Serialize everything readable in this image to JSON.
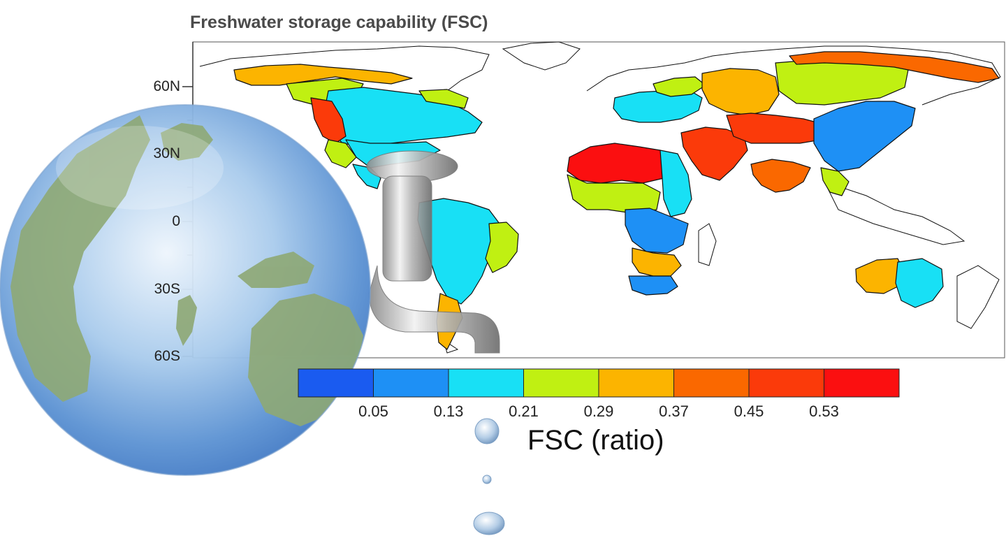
{
  "title": "Freshwater storage capability (FSC)",
  "latitude_labels": [
    "60N",
    "30N",
    "0",
    "30S",
    "60S"
  ],
  "colorbar": {
    "title": "FSC (ratio)",
    "tick_labels": [
      "0.05",
      "0.13",
      "0.21",
      "0.29",
      "0.37",
      "0.45",
      "0.53"
    ],
    "colors": [
      "#1a5bf0",
      "#1e90f5",
      "#18e0f5",
      "#c0f012",
      "#fcb400",
      "#fa6800",
      "#fb3a0a",
      "#fb0f10"
    ]
  },
  "regions": [
    {
      "name": "north-america-arctic-basins",
      "class": 4
    },
    {
      "name": "alaska-basin",
      "class": 3
    },
    {
      "name": "canada-central-basins",
      "class": 2
    },
    {
      "name": "canada-east-basin",
      "class": 3
    },
    {
      "name": "pacific-northwest-basin",
      "class": 6
    },
    {
      "name": "mississippi-basin",
      "class": 2
    },
    {
      "name": "us-southwest-basin",
      "class": 3
    },
    {
      "name": "mexico-basin",
      "class": 2
    },
    {
      "name": "amazon-basin",
      "class": 2
    },
    {
      "name": "brazil-east-basins",
      "class": 3
    },
    {
      "name": "south-america-andes-basin",
      "class": 4
    },
    {
      "name": "sahara-sahel-basins",
      "class": 7
    },
    {
      "name": "nile-basin",
      "class": 2
    },
    {
      "name": "west-africa-basin",
      "class": 3
    },
    {
      "name": "congo-basin",
      "class": 1
    },
    {
      "name": "southern-africa-basins",
      "class": 4
    },
    {
      "name": "zambezi-basin",
      "class": 1
    },
    {
      "name": "arabia-basins",
      "class": 6
    },
    {
      "name": "europe-basins",
      "class": 2
    },
    {
      "name": "scandinavia-basin",
      "class": 3
    },
    {
      "name": "siberia-west-basin",
      "class": 4
    },
    {
      "name": "siberia-central-basin",
      "class": 3
    },
    {
      "name": "siberia-east-basin",
      "class": 5
    },
    {
      "name": "central-asia-basins",
      "class": 6
    },
    {
      "name": "india-basin",
      "class": 5
    },
    {
      "name": "east-asia-basins",
      "class": 1
    },
    {
      "name": "southeast-asia-basin",
      "class": 3
    },
    {
      "name": "australia-west-basins",
      "class": 4
    },
    {
      "name": "australia-east-basin",
      "class": 2
    }
  ],
  "icons": [
    "globe-icon",
    "water-tap-icon",
    "water-drop-icon"
  ]
}
